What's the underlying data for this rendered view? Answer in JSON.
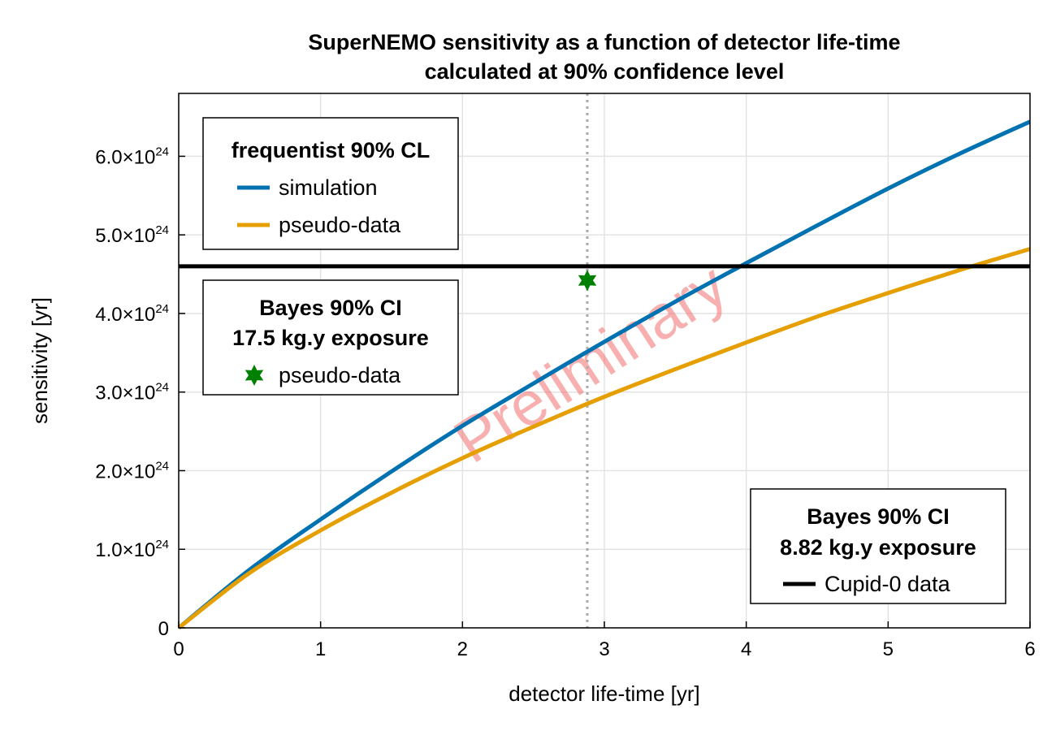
{
  "chart_data": {
    "type": "line",
    "title": [
      "SuperNEMO sensitivity as a function of detector life-time",
      "calculated at 90% confidence level"
    ],
    "xlabel": "detector life-time [yr]",
    "ylabel": "sensitivity [yr]",
    "xlim": [
      0,
      6
    ],
    "ylim": [
      0,
      6.8e+24
    ],
    "x_ticks": [
      0,
      1,
      2,
      3,
      4,
      5,
      6
    ],
    "x_tick_labels": [
      "0",
      "1",
      "2",
      "3",
      "4",
      "5",
      "6"
    ],
    "y_ticks": [
      0,
      1e+24,
      2e+24,
      3e+24,
      4e+24,
      5e+24,
      6e+24
    ],
    "y_tick_labels": [
      {
        "mantissa": "0",
        "exp": ""
      },
      {
        "mantissa": "1.0×10",
        "exp": "24"
      },
      {
        "mantissa": "2.0×10",
        "exp": "24"
      },
      {
        "mantissa": "3.0×10",
        "exp": "24"
      },
      {
        "mantissa": "4.0×10",
        "exp": "24"
      },
      {
        "mantissa": "5.0×10",
        "exp": "24"
      },
      {
        "mantissa": "6.0×10",
        "exp": "24"
      }
    ],
    "grid": true,
    "series": [
      {
        "name": "simulation",
        "color": "#0072b2",
        "x": [
          0,
          0.5,
          1,
          1.5,
          2,
          2.5,
          3,
          3.5,
          4,
          4.5,
          5,
          5.5,
          6
        ],
        "y": [
          0,
          7.4e+23,
          1.38e+24,
          1.99e+24,
          2.57e+24,
          3.11e+24,
          3.64e+24,
          4.15e+24,
          4.64e+24,
          5.12e+24,
          5.59e+24,
          6.03e+24,
          6.44e+24
        ]
      },
      {
        "name": "pseudo-data",
        "color": "#e69f00",
        "x": [
          0,
          0.5,
          1,
          1.5,
          2,
          2.5,
          3,
          3.5,
          4,
          4.5,
          5,
          5.5,
          6
        ],
        "y": [
          0,
          7e+23,
          1.24e+24,
          1.72e+24,
          2.16e+24,
          2.56e+24,
          2.94e+24,
          3.29e+24,
          3.63e+24,
          3.96e+24,
          4.26e+24,
          4.55e+24,
          4.82e+24
        ]
      }
    ],
    "hline": {
      "name": "Cupid-0 data",
      "y": 4.6e+24,
      "color": "#000000"
    },
    "vline": {
      "x": 2.88,
      "color": "#aaaaaa",
      "style": "dotted"
    },
    "points": [
      {
        "name": "pseudo-data",
        "x": 2.88,
        "y": 4.42e+24,
        "color": "#008000",
        "marker": "star"
      }
    ],
    "legends": [
      {
        "placement": "top-left",
        "title": [
          "frequentist 90% CL"
        ],
        "entries": [
          {
            "label": "simulation",
            "color": "#0072b2",
            "kind": "line"
          },
          {
            "label": "pseudo-data",
            "color": "#e69f00",
            "kind": "line"
          }
        ]
      },
      {
        "placement": "middle-left",
        "title": [
          "Bayes 90% CI",
          "17.5 kg.y exposure"
        ],
        "entries": [
          {
            "label": "pseudo-data",
            "color": "#008000",
            "kind": "star"
          }
        ]
      },
      {
        "placement": "bottom-right",
        "title": [
          "Bayes 90% CI",
          "8.82 kg.y exposure"
        ],
        "entries": [
          {
            "label": "Cupid-0 data",
            "color": "#000000",
            "kind": "line"
          }
        ]
      }
    ],
    "watermark": "Preliminary"
  }
}
